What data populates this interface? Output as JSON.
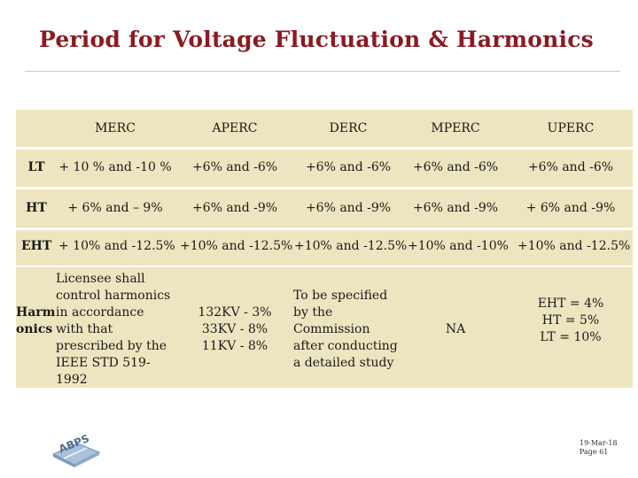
{
  "title": "Period for Voltage Fluctuation & Harmonics",
  "table": {
    "columns": [
      "MERC",
      "APERC",
      "DERC",
      "MPERC",
      "UPERC"
    ],
    "rows": [
      {
        "label": "LT",
        "cells": [
          "+ 10 % and -10 %",
          "+6% and -6%",
          "+6% and -6%",
          "+6% and -6%",
          "+6% and -6%"
        ]
      },
      {
        "label": "HT",
        "cells": [
          "+ 6% and – 9%",
          "+6% and -9%",
          "+6% and -9%",
          "+6% and -9%",
          "+ 6% and -9%"
        ]
      },
      {
        "label": "EHT",
        "cells": [
          "+ 10% and -12.5%",
          "+10% and -12.5%",
          "+10% and -12.5%",
          "+10% and -10%",
          "+10% and -12.5%"
        ]
      },
      {
        "label_lines": [
          "Harm",
          "onics"
        ],
        "merc_lines": [
          "Licensee shall",
          "control harmonics",
          "in accordance",
          "with that",
          "prescribed by the",
          "IEEE STD 519-",
          "1992"
        ],
        "aperc_lines": [
          "132KV - 3%",
          "33KV - 8%",
          "11KV - 8%"
        ],
        "derc_lines": [
          "To  be  specified",
          "by the",
          "Commission",
          "after conducting",
          "a detailed study"
        ],
        "mperc": "NA",
        "uperc_lines": [
          "EHT = 4%",
          "HT   =  5%",
          "LT    = 10%"
        ]
      }
    ]
  },
  "logo_text": "ABPS",
  "footer": {
    "date": "19-Mar-18",
    "page": "Page 61"
  },
  "colors": {
    "title": "#8b1a22",
    "band": "#ece5bf"
  }
}
